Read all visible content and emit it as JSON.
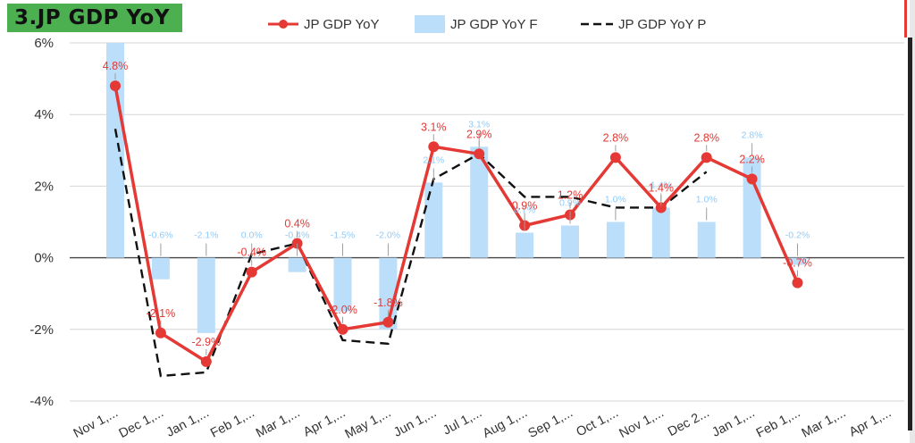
{
  "title": "3.JP GDP YoY",
  "colors": {
    "actual": "#e53935",
    "forecast": "#bbdefb",
    "previous": "#111111",
    "badge": "#4caf50"
  },
  "chart_data": {
    "type": "bar",
    "categories": [
      "Nov 1,...",
      "Dec 1,...",
      "Jan 1,...",
      "Feb 1,...",
      "Mar 1,...",
      "Apr 1,...",
      "May 1,...",
      "Jun 1,...",
      "Jul 1,...",
      "Aug 1,...",
      "Sep 1,...",
      "Oct 1,...",
      "Nov 1,...",
      "Dec 2...",
      "Jan 1,...",
      "Feb 1,...",
      "Mar 1,...",
      "Apr 1,..."
    ],
    "ylim": [
      -4,
      6
    ],
    "yticks": [
      "6%",
      "4%",
      "2%",
      "0%",
      "-2%",
      "-4%"
    ],
    "grid": true,
    "legend": "top",
    "series": [
      {
        "name": "JP GDP YoY",
        "kind": "line",
        "values": [
          4.8,
          -2.1,
          -2.9,
          -0.4,
          0.4,
          -2.0,
          -1.8,
          3.1,
          2.9,
          0.9,
          1.2,
          2.8,
          1.4,
          2.8,
          2.2,
          -0.7,
          null,
          null
        ],
        "labels": [
          "4.8%",
          "-2.1%",
          "-2.9%",
          "-0.4%",
          "0.4%",
          "-2.0%",
          "-1.8%",
          "3.1%",
          "2.9%",
          "0.9%",
          "1.2%",
          "2.8%",
          "1.4%",
          "2.8%",
          "2.2%",
          "-0.7%",
          "",
          ""
        ]
      },
      {
        "name": "JP GDP YoY F",
        "kind": "bar",
        "values": [
          6.0,
          -0.6,
          -2.1,
          0.0,
          -0.4,
          -1.5,
          -2.0,
          2.1,
          3.1,
          0.7,
          0.9,
          1.0,
          1.4,
          1.0,
          2.8,
          -0.2,
          null,
          null
        ],
        "labels": [
          "",
          "-0.6%",
          "-2.1%",
          "0.0%",
          "-0.4%",
          "-1.5%",
          "-2.0%",
          "2.1%",
          "3.1%",
          "0.7%",
          "0.9%",
          "1.0%",
          "1.4%",
          "1.0%",
          "2.8%",
          "-0.2%",
          "",
          ""
        ]
      },
      {
        "name": "JP GDP YoY P",
        "kind": "dashed",
        "values": [
          3.6,
          -3.3,
          -3.2,
          0.1,
          0.4,
          -2.3,
          -2.4,
          2.2,
          2.9,
          1.7,
          1.7,
          1.4,
          1.4,
          2.4,
          null,
          null,
          null,
          null
        ]
      }
    ]
  }
}
